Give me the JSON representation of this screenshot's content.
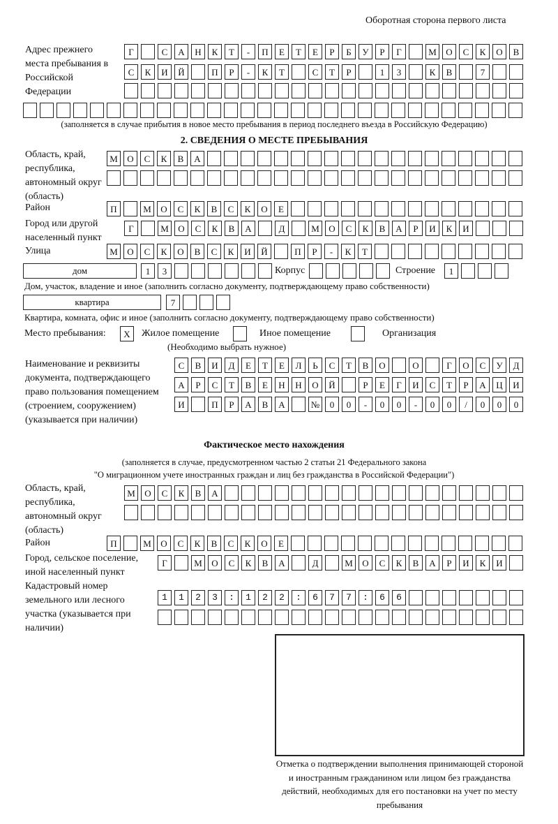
{
  "header": {
    "side_label": "Оборотная сторона первого листа"
  },
  "previous_address": {
    "label": "Адрес прежнего места пребывания в Российской Федерации",
    "rows": [
      "Г САНКТ-ПЕТЕРБУРГ МОСКОВ",
      "СКИЙ ПР-КТ СТР 13 КВ 7",
      "",
      ""
    ],
    "note": "(заполняется в случае прибытия в новое место пребывания в период последнего въезда в Российскую Федерацию)"
  },
  "section2": {
    "title": "2. СВЕДЕНИЯ О МЕСТЕ ПРЕБЫВАНИЯ",
    "region_label": "Область, край, республика, автономный округ (область)",
    "region_rows": [
      "МОСКВА",
      ""
    ],
    "district_label": "Район",
    "district": "П МОСКВСКОЕ",
    "city_label": "Город или другой населенный пункт",
    "city": "Г МОСКВА Д МОСКВАРИКИ",
    "street_label": "Улица",
    "street": "МОСКОВСКИЙ ПР-КТ",
    "house_type": "дом",
    "house": "13",
    "korpus_label": "Корпус",
    "korpus": "",
    "building_label": "Строение",
    "building": "1",
    "house_note": "Дом, участок, владение и иное (заполнить согласно документу, подтверждающему право собственности)",
    "flat_type": "квартира",
    "flat": "7",
    "flat_note": "Квартира, комната, офис и иное (заполнить согласно документу, подтверждающему право собственности)",
    "stay_place_label": "Место пребывания:",
    "stay_options": [
      {
        "label": "Жилое помещение",
        "mark": "X",
        "checked": true
      },
      {
        "label": "Иное помещение",
        "mark": "",
        "checked": false
      },
      {
        "label": "Организация",
        "mark": "",
        "checked": false
      }
    ],
    "choose_note": "(Необходимо выбрать нужное)",
    "doc_label": "Наименование и реквизиты документа, подтверждающего право пользования помещением (строением, сооружением) (указывается при наличии)",
    "doc_rows": [
      "СВИДЕТЕЛЬСТВО О ГОСУД",
      "АРСТВЕННОЙ РЕГИСТРАЦИ",
      "И ПРАВА №00-00-00/000"
    ]
  },
  "actual": {
    "title": "Фактическое место нахождения",
    "note1": "(заполняется в случае, предусмотренном частью 2 статьи 21 Федерального закона",
    "note2": "\"О миграционном учете иностранных граждан и лиц без гражданства в Российской Федерации\")",
    "region_label": "Область, край, республика, автономный округ (область)",
    "region_rows": [
      "МОСКВА",
      ""
    ],
    "district_label": "Район",
    "district": "П МОСКВСКОЕ",
    "city_label": "Город, сельское поселение, иной населенный пункт",
    "city": "Г МОСКВА Д МОСКВАРИКИ",
    "cadastral_label": "Кадастровый номер земельного или лесного участка (указывается при наличии)",
    "cadastral_rows": [
      "1123:122:677:66",
      ""
    ]
  },
  "confirmation": {
    "caption": "Отметка о подтверждении выполнения принимающей стороной и иностранным гражданином или лицом без гражданства действий, необходимых для его постановки на учет по месту пребывания"
  }
}
